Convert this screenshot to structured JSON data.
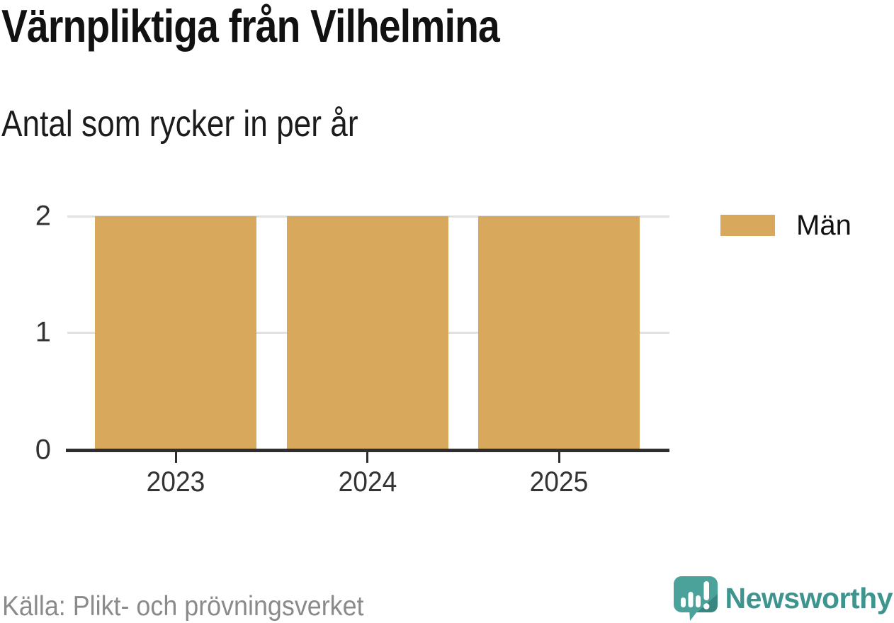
{
  "header": {
    "title": "Värnpliktiga från Vilhelmina",
    "subtitle": "Antal som rycker in per år"
  },
  "legend": {
    "items": [
      {
        "label": "Män",
        "color": "#d8a95c"
      }
    ]
  },
  "footer": {
    "source": "Källa: Plikt- och prövningsverket",
    "brand": "Newsworthy"
  },
  "colors": {
    "bar_gold": "#d8a95c",
    "axis_dark": "#2e2e2e",
    "gridline_gray": "#e1e1e1",
    "source_gray": "#8a8a8a",
    "brand_teal": "#3e948e",
    "icon_teal": "#4ba29b",
    "icon_teal_dark": "#37867f"
  },
  "chart_data": {
    "type": "bar",
    "title": "Värnpliktiga från Vilhelmina",
    "subtitle": "Antal som rycker in per år",
    "categories": [
      "2023",
      "2024",
      "2025"
    ],
    "series": [
      {
        "name": "Män",
        "color": "#d8a95c",
        "values": [
          2,
          2,
          2
        ]
      }
    ],
    "xlabel": "",
    "ylabel": "Antal som rycker in per år",
    "ylim": [
      0,
      2
    ],
    "yticks": [
      0,
      1,
      2
    ],
    "grid": "horizontal",
    "legend_position": "right",
    "source": "Källa: Plikt- och prövningsverket"
  }
}
